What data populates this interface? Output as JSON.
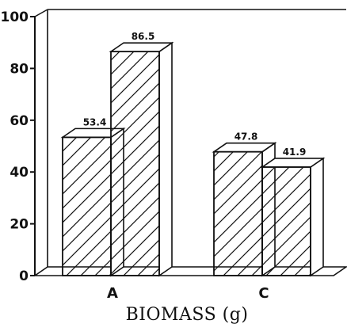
{
  "chart_data": {
    "type": "bar",
    "style": "3d-hatched",
    "title": "",
    "xlabel": "BIOMASS (g)",
    "ylabel": "",
    "ylim": [
      0,
      100
    ],
    "yticks": [
      0,
      20,
      40,
      60,
      80,
      100
    ],
    "categories": [
      "A",
      "C"
    ],
    "series": [
      {
        "values": [
          53.4,
          47.8
        ]
      },
      {
        "values": [
          86.5,
          41.9
        ]
      }
    ],
    "data_labels": [
      [
        "53.4",
        "47.8"
      ],
      [
        "86.5",
        "41.9"
      ]
    ],
    "colors": {
      "stroke": "#111111",
      "fill": "#ffffff",
      "background": "#ffffff"
    }
  }
}
